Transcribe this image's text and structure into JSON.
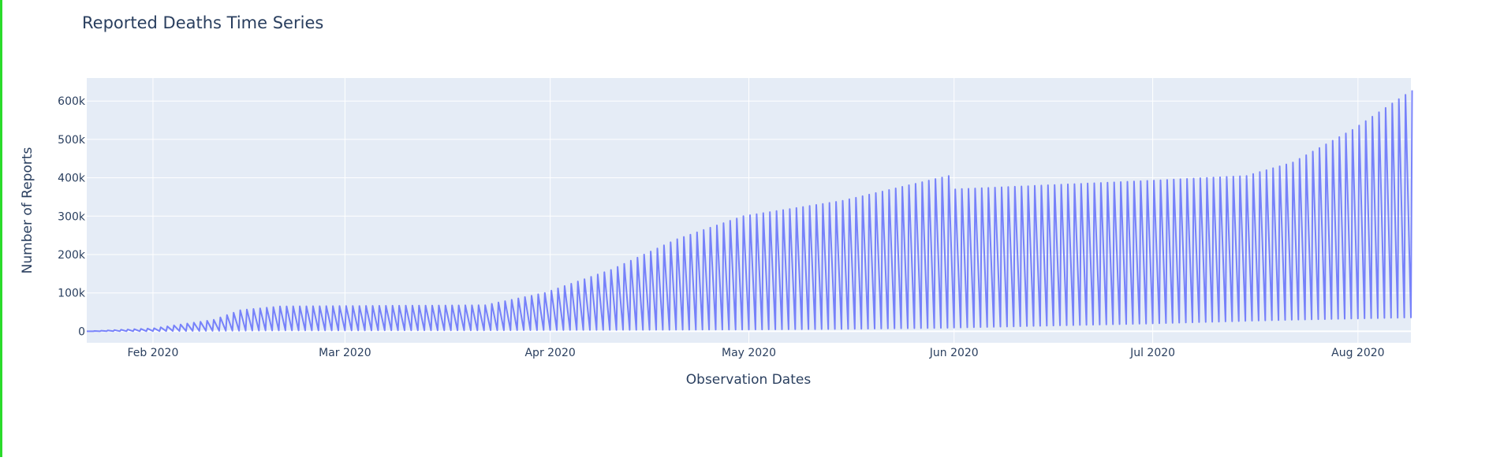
{
  "colors": {
    "plot_bg": "#e5ecf6",
    "grid": "#ffffff",
    "series": "#636efa",
    "text": "#2a3f5f",
    "left_edge": "#2bdb2b"
  },
  "chart_data": {
    "type": "line",
    "title": "Reported Deaths Time Series",
    "xlabel": "Observation Dates",
    "ylabel": "Number of Reports",
    "xlim": [
      "2020-01-22",
      "2020-08-09"
    ],
    "ylim": [
      -30000,
      660000
    ],
    "grid": true,
    "legend": "none",
    "x_ticks": [
      {
        "date": "2020-02-01",
        "label": "Feb 2020"
      },
      {
        "date": "2020-03-01",
        "label": "Mar 2020"
      },
      {
        "date": "2020-04-01",
        "label": "Apr 2020"
      },
      {
        "date": "2020-05-01",
        "label": "May 2020"
      },
      {
        "date": "2020-06-01",
        "label": "Jun 2020"
      },
      {
        "date": "2020-07-01",
        "label": "Jul 2020"
      },
      {
        "date": "2020-08-01",
        "label": "Aug 2020"
      }
    ],
    "y_ticks": [
      {
        "value": 0,
        "label": "0"
      },
      {
        "value": 100000,
        "label": "100k"
      },
      {
        "value": 200000,
        "label": "200k"
      },
      {
        "value": 300000,
        "label": "300k"
      },
      {
        "value": 400000,
        "label": "400k"
      },
      {
        "value": 500000,
        "label": "500k"
      },
      {
        "value": 600000,
        "label": "600k"
      }
    ],
    "series": [
      {
        "anchors": [
          [
            "2020-01-22",
            0,
            0
          ],
          [
            "2020-02-01",
            300,
            8000
          ],
          [
            "2020-02-10",
            1000,
            30000
          ],
          [
            "2020-02-14",
            1500,
            55000
          ],
          [
            "2020-02-20",
            2200,
            65000
          ],
          [
            "2020-03-22",
            2500,
            68000
          ],
          [
            "2020-03-31",
            3000,
            100000
          ],
          [
            "2020-04-10",
            3500,
            160000
          ],
          [
            "2020-04-20",
            4000,
            240000
          ],
          [
            "2020-04-30",
            4500,
            300000
          ],
          [
            "2020-05-15",
            6000,
            340000
          ],
          [
            "2020-05-31",
            9000,
            405000
          ],
          [
            "2020-06-01",
            9500,
            370000
          ],
          [
            "2020-06-30",
            20000,
            392000
          ],
          [
            "2020-07-15",
            27000,
            405000
          ],
          [
            "2020-07-22",
            30000,
            440000
          ],
          [
            "2020-07-31",
            33000,
            525000
          ],
          [
            "2020-08-09",
            36000,
            628000
          ]
        ]
      }
    ]
  }
}
